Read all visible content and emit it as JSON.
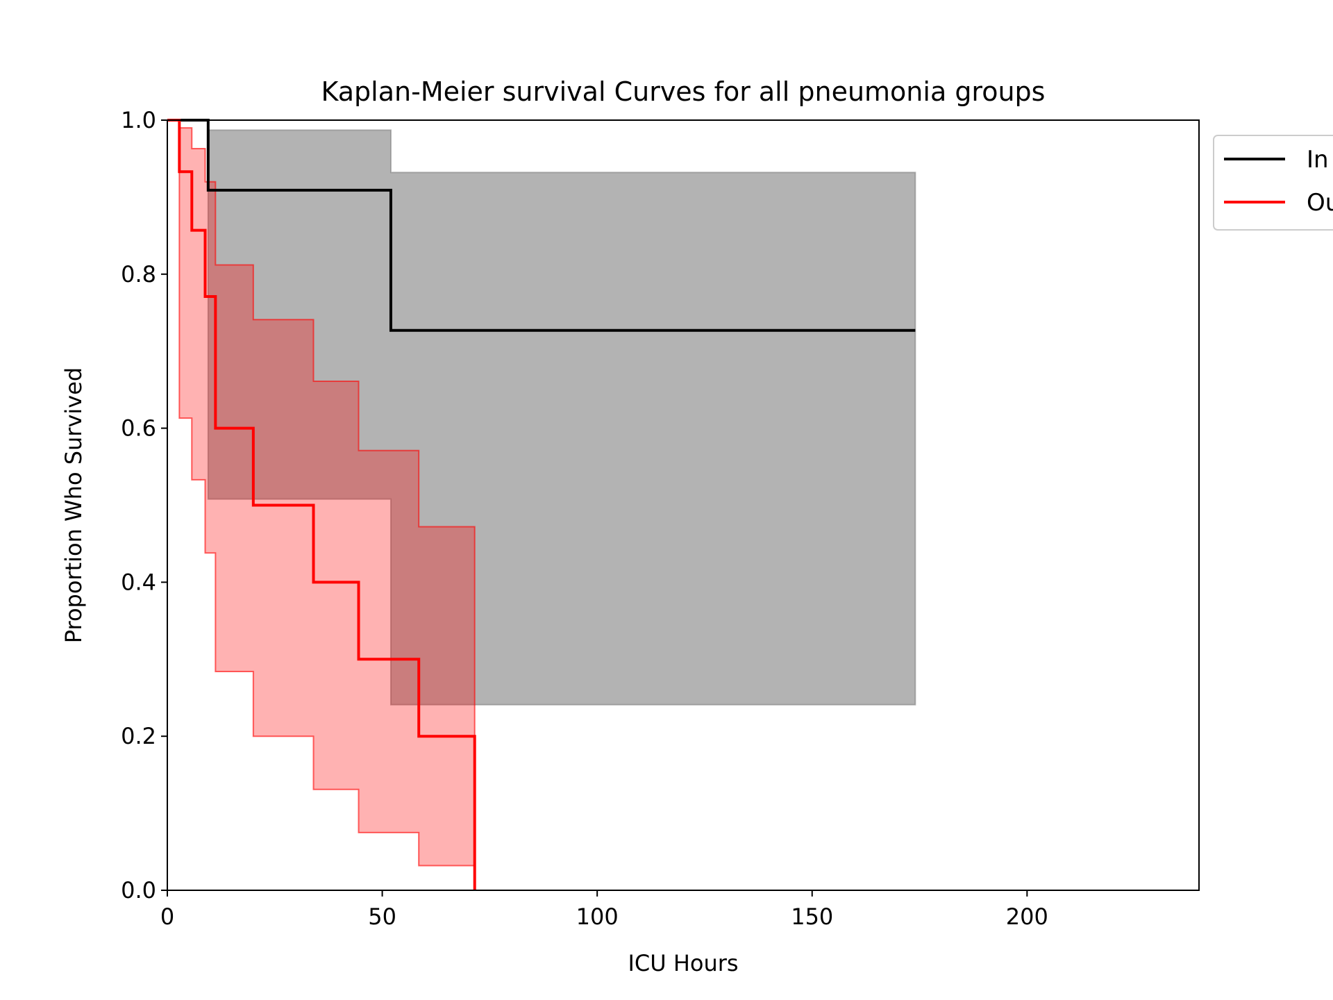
{
  "chart_data": {
    "type": "line",
    "title": "Kaplan-Meier survival Curves for all pneumonia groups",
    "xlabel": "ICU Hours",
    "ylabel": "Proportion Who Survived",
    "xlim": [
      0,
      240
    ],
    "ylim": [
      0,
      1.0
    ],
    "xticks": [
      0,
      50,
      100,
      150,
      200
    ],
    "xtick_labels": [
      "0",
      "50",
      "100",
      "150",
      "200"
    ],
    "yticks": [
      0,
      0.2,
      0.4,
      0.6,
      0.8,
      1.0
    ],
    "ytick_labels": [
      "0.0",
      "0.2",
      "0.4",
      "0.6",
      "0.8",
      "1.0"
    ],
    "grid": false,
    "legend_position": "outside-top-right",
    "series": [
      {
        "name": "In",
        "color": "#000000",
        "band_color": "#808080",
        "step": [
          {
            "x": 0,
            "y": 1.0
          },
          {
            "x": 9.5,
            "y": 0.909
          },
          {
            "x": 52,
            "y": 0.727
          },
          {
            "x": 174,
            "y": 0.727
          }
        ],
        "ci": [
          {
            "x": 0,
            "lower": 1.0,
            "upper": 1.0
          },
          {
            "x": 9.5,
            "lower": 0.508,
            "upper": 0.987
          },
          {
            "x": 52,
            "lower": 0.241,
            "upper": 0.932
          },
          {
            "x": 174,
            "lower": 0.241,
            "upper": 0.932
          }
        ]
      },
      {
        "name": "Ou",
        "color": "#ff0000",
        "band_color": "#ff0000",
        "step": [
          {
            "x": 0,
            "y": 1.0
          },
          {
            "x": 2.8,
            "y": 0.933
          },
          {
            "x": 5.7,
            "y": 0.857
          },
          {
            "x": 8.8,
            "y": 0.771
          },
          {
            "x": 11.2,
            "y": 0.6
          },
          {
            "x": 20,
            "y": 0.5
          },
          {
            "x": 34,
            "y": 0.4
          },
          {
            "x": 44.5,
            "y": 0.3
          },
          {
            "x": 58.5,
            "y": 0.2
          },
          {
            "x": 71.5,
            "y": 0.0
          }
        ],
        "ci": [
          {
            "x": 0,
            "lower": 1.0,
            "upper": 1.0
          },
          {
            "x": 2.8,
            "lower": 0.613,
            "upper": 0.99
          },
          {
            "x": 5.7,
            "lower": 0.533,
            "upper": 0.963
          },
          {
            "x": 8.8,
            "lower": 0.438,
            "upper": 0.92
          },
          {
            "x": 11.2,
            "lower": 0.284,
            "upper": 0.812
          },
          {
            "x": 20,
            "lower": 0.2,
            "upper": 0.741
          },
          {
            "x": 34,
            "lower": 0.131,
            "upper": 0.661
          },
          {
            "x": 44.5,
            "lower": 0.075,
            "upper": 0.571
          },
          {
            "x": 58.5,
            "lower": 0.032,
            "upper": 0.472
          },
          {
            "x": 71.5,
            "lower": 0.0,
            "upper": 0.0
          }
        ]
      }
    ]
  }
}
